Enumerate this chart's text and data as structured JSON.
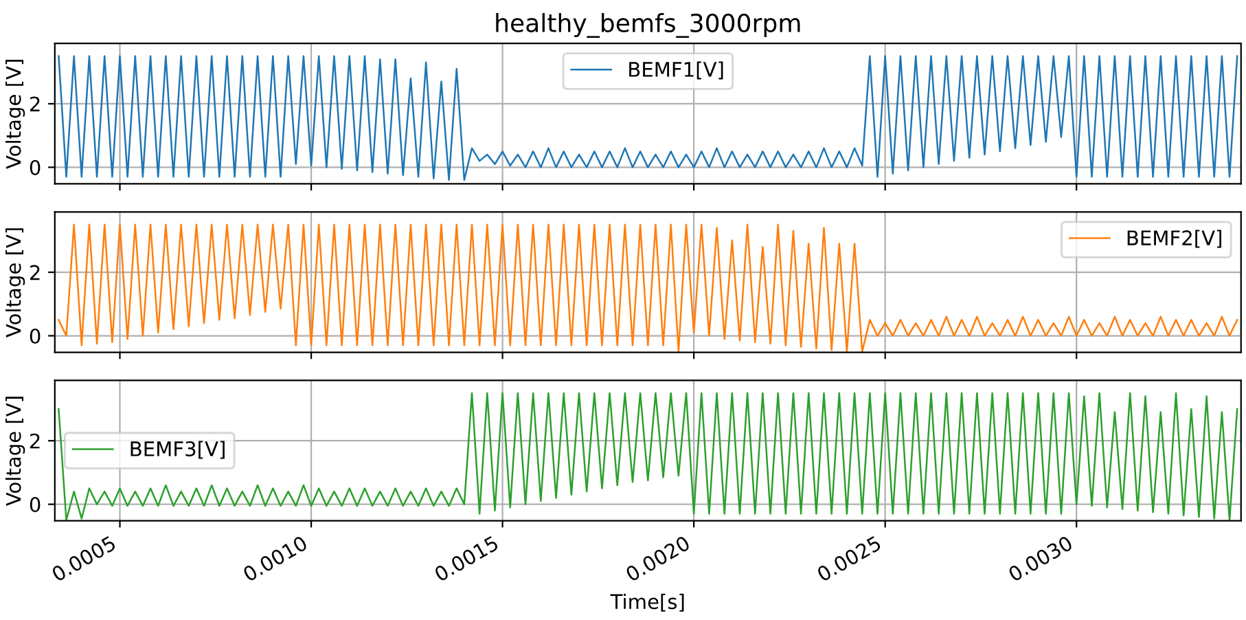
{
  "chart_data": [
    {
      "type": "line",
      "title": "healthy_bemfs_3000rpm",
      "ylabel": "Voltage [V]",
      "xlim": [
        0.00033,
        0.00343
      ],
      "ylim": [
        -0.52,
        3.9
      ],
      "yticks": [
        0,
        2
      ],
      "xticks": [
        {
          "value": 0.0005,
          "label": null
        },
        {
          "value": 0.001,
          "label": null
        },
        {
          "value": 0.0015,
          "label": null
        },
        {
          "value": 0.002,
          "label": null
        },
        {
          "value": 0.0025,
          "label": null
        },
        {
          "value": 0.003,
          "label": null
        }
      ],
      "tick_labels": "y",
      "grid": true,
      "legend": "top",
      "line_style": "solid",
      "marker": "none",
      "x": [
        0.00034,
        0.00036,
        0.00038,
        0.0004,
        0.00042,
        0.00044,
        0.00046,
        0.00048,
        0.0005,
        0.00052,
        0.00054,
        0.00056,
        0.00058,
        0.0006,
        0.00062,
        0.00064,
        0.00066,
        0.00068,
        0.0007,
        0.00072,
        0.00074,
        0.00076,
        0.00078,
        0.0008,
        0.00082,
        0.00084,
        0.00086,
        0.00088,
        0.0009,
        0.00092,
        0.00094,
        0.00096,
        0.00098,
        0.001,
        0.00102,
        0.00104,
        0.00106,
        0.00108,
        0.0011,
        0.00112,
        0.00114,
        0.00116,
        0.00118,
        0.0012,
        0.00122,
        0.00124,
        0.00126,
        0.00128,
        0.0013,
        0.00132,
        0.00134,
        0.00136,
        0.00138,
        0.0014,
        0.00142,
        0.00144,
        0.00146,
        0.00148,
        0.0015,
        0.00152,
        0.00154,
        0.00156,
        0.00158,
        0.0016,
        0.00162,
        0.00164,
        0.00166,
        0.00168,
        0.0017,
        0.00172,
        0.00174,
        0.00176,
        0.00178,
        0.0018,
        0.00182,
        0.00184,
        0.00186,
        0.00188,
        0.0019,
        0.00192,
        0.00194,
        0.00196,
        0.00198,
        0.002,
        0.00202,
        0.00204,
        0.00206,
        0.00208,
        0.0021,
        0.00212,
        0.00214,
        0.00216,
        0.00218,
        0.0022,
        0.00222,
        0.00224,
        0.00226,
        0.00228,
        0.0023,
        0.00232,
        0.00234,
        0.00236,
        0.00238,
        0.0024,
        0.00242,
        0.00244,
        0.00246,
        0.00248,
        0.0025,
        0.00252,
        0.00254,
        0.00256,
        0.00258,
        0.0026,
        0.00262,
        0.00264,
        0.00266,
        0.00268,
        0.0027,
        0.00272,
        0.00274,
        0.00276,
        0.00278,
        0.0028,
        0.00282,
        0.00284,
        0.00286,
        0.00288,
        0.0029,
        0.00292,
        0.00294,
        0.00296,
        0.00298,
        0.003,
        0.00302,
        0.00304,
        0.00306,
        0.00308,
        0.0031,
        0.00312,
        0.00314,
        0.00316,
        0.00318,
        0.0032,
        0.00322,
        0.00324,
        0.00326,
        0.00328,
        0.0033,
        0.00332,
        0.00334,
        0.00336,
        0.00338,
        0.0034,
        0.00342
      ],
      "series": [
        {
          "name": "BEMF1[V]",
          "color": "#1f77b4",
          "values": [
            3.5,
            -0.3,
            3.5,
            -0.3,
            3.5,
            -0.3,
            3.5,
            -0.3,
            3.5,
            -0.3,
            3.5,
            -0.3,
            3.5,
            -0.3,
            3.5,
            -0.3,
            3.5,
            -0.3,
            3.5,
            -0.3,
            3.5,
            -0.3,
            3.5,
            -0.3,
            3.5,
            -0.3,
            3.5,
            -0.3,
            3.5,
            -0.3,
            3.5,
            0.1,
            3.5,
            0.05,
            3.5,
            0.0,
            3.5,
            -0.05,
            3.5,
            -0.1,
            3.5,
            -0.15,
            3.4,
            -0.2,
            3.4,
            -0.25,
            2.8,
            -0.3,
            3.3,
            -0.35,
            2.7,
            -0.4,
            3.1,
            -0.4,
            0.6,
            0.2,
            0.4,
            0.1,
            0.5,
            0.05,
            0.4,
            0.0,
            0.5,
            0.0,
            0.6,
            0.0,
            0.5,
            0.0,
            0.4,
            0.0,
            0.5,
            0.0,
            0.5,
            0.0,
            0.6,
            0.0,
            0.5,
            0.0,
            0.4,
            0.0,
            0.5,
            0.0,
            0.4,
            0.0,
            0.5,
            0.0,
            0.6,
            0.0,
            0.5,
            0.0,
            0.4,
            0.0,
            0.5,
            0.0,
            0.5,
            0.0,
            0.4,
            0.0,
            0.5,
            0.0,
            0.6,
            0.0,
            0.5,
            0.0,
            0.6,
            0.05,
            3.5,
            -0.3,
            3.5,
            -0.2,
            3.5,
            -0.1,
            3.5,
            0.0,
            3.5,
            0.1,
            3.5,
            0.2,
            3.5,
            0.3,
            3.5,
            0.4,
            3.5,
            0.5,
            3.5,
            0.6,
            3.5,
            0.7,
            3.5,
            0.8,
            3.5,
            0.95,
            3.5,
            -0.3,
            3.5,
            -0.3,
            3.5,
            -0.3,
            3.5,
            -0.3,
            3.5,
            -0.3,
            3.5,
            -0.3,
            3.5,
            -0.3,
            3.5,
            -0.3,
            3.5,
            -0.3,
            3.5,
            -0.3,
            3.5,
            -0.3,
            3.5
          ]
        }
      ]
    },
    {
      "type": "line",
      "ylabel": "Voltage [V]",
      "xlim": [
        0.00033,
        0.00343
      ],
      "ylim": [
        -0.52,
        3.9
      ],
      "yticks": [
        0,
        2
      ],
      "xticks": [
        {
          "value": 0.0005,
          "label": null
        },
        {
          "value": 0.001,
          "label": null
        },
        {
          "value": 0.0015,
          "label": null
        },
        {
          "value": 0.002,
          "label": null
        },
        {
          "value": 0.0025,
          "label": null
        },
        {
          "value": 0.003,
          "label": null
        }
      ],
      "tick_labels": "y",
      "grid": true,
      "legend": "top right",
      "line_style": "solid",
      "marker": "none",
      "x": [
        0.00034,
        0.00036,
        0.00038,
        0.0004,
        0.00042,
        0.00044,
        0.00046,
        0.00048,
        0.0005,
        0.00052,
        0.00054,
        0.00056,
        0.00058,
        0.0006,
        0.00062,
        0.00064,
        0.00066,
        0.00068,
        0.0007,
        0.00072,
        0.00074,
        0.00076,
        0.00078,
        0.0008,
        0.00082,
        0.00084,
        0.00086,
        0.00088,
        0.0009,
        0.00092,
        0.00094,
        0.00096,
        0.00098,
        0.001,
        0.00102,
        0.00104,
        0.00106,
        0.00108,
        0.0011,
        0.00112,
        0.00114,
        0.00116,
        0.00118,
        0.0012,
        0.00122,
        0.00124,
        0.00126,
        0.00128,
        0.0013,
        0.00132,
        0.00134,
        0.00136,
        0.00138,
        0.0014,
        0.00142,
        0.00144,
        0.00146,
        0.00148,
        0.0015,
        0.00152,
        0.00154,
        0.00156,
        0.00158,
        0.0016,
        0.00162,
        0.00164,
        0.00166,
        0.00168,
        0.0017,
        0.00172,
        0.00174,
        0.00176,
        0.00178,
        0.0018,
        0.00182,
        0.00184,
        0.00186,
        0.00188,
        0.0019,
        0.00192,
        0.00194,
        0.00196,
        0.00198,
        0.002,
        0.00202,
        0.00204,
        0.00206,
        0.00208,
        0.0021,
        0.00212,
        0.00214,
        0.00216,
        0.00218,
        0.0022,
        0.00222,
        0.00224,
        0.00226,
        0.00228,
        0.0023,
        0.00232,
        0.00234,
        0.00236,
        0.00238,
        0.0024,
        0.00242,
        0.00244,
        0.00246,
        0.00248,
        0.0025,
        0.00252,
        0.00254,
        0.00256,
        0.00258,
        0.0026,
        0.00262,
        0.00264,
        0.00266,
        0.00268,
        0.0027,
        0.00272,
        0.00274,
        0.00276,
        0.00278,
        0.0028,
        0.00282,
        0.00284,
        0.00286,
        0.00288,
        0.0029,
        0.00292,
        0.00294,
        0.00296,
        0.00298,
        0.003,
        0.00302,
        0.00304,
        0.00306,
        0.00308,
        0.0031,
        0.00312,
        0.00314,
        0.00316,
        0.00318,
        0.0032,
        0.00322,
        0.00324,
        0.00326,
        0.00328,
        0.0033,
        0.00332,
        0.00334,
        0.00336,
        0.00338,
        0.0034,
        0.00342
      ],
      "series": [
        {
          "name": "BEMF2[V]",
          "color": "#ff7f0e",
          "values": [
            0.5,
            0.0,
            3.5,
            -0.3,
            3.5,
            -0.25,
            3.5,
            -0.2,
            3.5,
            -0.1,
            3.5,
            0.0,
            3.5,
            0.1,
            3.5,
            0.2,
            3.5,
            0.3,
            3.5,
            0.4,
            3.5,
            0.5,
            3.5,
            0.55,
            3.5,
            0.65,
            3.5,
            0.75,
            3.5,
            0.85,
            3.5,
            -0.3,
            3.5,
            -0.3,
            3.5,
            -0.3,
            3.5,
            -0.3,
            3.5,
            -0.3,
            3.5,
            -0.3,
            3.5,
            -0.3,
            3.5,
            -0.3,
            3.5,
            -0.3,
            3.5,
            -0.3,
            3.5,
            -0.3,
            3.5,
            -0.3,
            3.5,
            -0.3,
            3.5,
            -0.3,
            3.5,
            -0.3,
            3.5,
            -0.3,
            3.5,
            -0.3,
            3.5,
            -0.3,
            3.5,
            -0.3,
            3.5,
            -0.3,
            3.5,
            -0.3,
            3.5,
            -0.3,
            3.5,
            -0.3,
            3.5,
            -0.3,
            3.5,
            -0.3,
            3.5,
            -0.5,
            3.5,
            0.1,
            3.5,
            0.0,
            3.4,
            -0.1,
            3.0,
            -0.15,
            3.5,
            -0.2,
            2.8,
            -0.25,
            3.5,
            -0.3,
            3.3,
            -0.35,
            2.9,
            -0.4,
            3.4,
            -0.45,
            2.9,
            -0.5,
            2.9,
            -0.5,
            0.5,
            0.0,
            0.4,
            0.0,
            0.5,
            0.0,
            0.4,
            0.0,
            0.5,
            0.0,
            0.6,
            0.0,
            0.5,
            0.0,
            0.6,
            0.0,
            0.4,
            0.0,
            0.5,
            0.0,
            0.6,
            0.0,
            0.5,
            0.0,
            0.4,
            0.0,
            0.6,
            0.0,
            0.5,
            0.0,
            0.4,
            0.0,
            0.6,
            0.0,
            0.5,
            0.0,
            0.4,
            0.0,
            0.6,
            0.0,
            0.5,
            0.0,
            0.5,
            0.0,
            0.4,
            0.0,
            0.6,
            0.0,
            0.5
          ]
        }
      ]
    },
    {
      "type": "line",
      "ylabel": "Voltage [V]",
      "xlabel": "Time[s]",
      "xlim": [
        0.00033,
        0.00343
      ],
      "ylim": [
        -0.52,
        3.9
      ],
      "yticks": [
        0,
        2
      ],
      "xticks": [
        {
          "value": 0.0005,
          "label": "0.0005"
        },
        {
          "value": 0.001,
          "label": "0.0010"
        },
        {
          "value": 0.0015,
          "label": "0.0015"
        },
        {
          "value": 0.002,
          "label": "0.0020"
        },
        {
          "value": 0.0025,
          "label": "0.0025"
        },
        {
          "value": 0.003,
          "label": "0.0030"
        }
      ],
      "grid": true,
      "legend": "left",
      "line_style": "solid",
      "marker": "none",
      "x": [
        0.00034,
        0.00036,
        0.00038,
        0.0004,
        0.00042,
        0.00044,
        0.00046,
        0.00048,
        0.0005,
        0.00052,
        0.00054,
        0.00056,
        0.00058,
        0.0006,
        0.00062,
        0.00064,
        0.00066,
        0.00068,
        0.0007,
        0.00072,
        0.00074,
        0.00076,
        0.00078,
        0.0008,
        0.00082,
        0.00084,
        0.00086,
        0.00088,
        0.0009,
        0.00092,
        0.00094,
        0.00096,
        0.00098,
        0.001,
        0.00102,
        0.00104,
        0.00106,
        0.00108,
        0.0011,
        0.00112,
        0.00114,
        0.00116,
        0.00118,
        0.0012,
        0.00122,
        0.00124,
        0.00126,
        0.00128,
        0.0013,
        0.00132,
        0.00134,
        0.00136,
        0.00138,
        0.0014,
        0.00142,
        0.00144,
        0.00146,
        0.00148,
        0.0015,
        0.00152,
        0.00154,
        0.00156,
        0.00158,
        0.0016,
        0.00162,
        0.00164,
        0.00166,
        0.00168,
        0.0017,
        0.00172,
        0.00174,
        0.00176,
        0.00178,
        0.0018,
        0.00182,
        0.00184,
        0.00186,
        0.00188,
        0.0019,
        0.00192,
        0.00194,
        0.00196,
        0.00198,
        0.002,
        0.00202,
        0.00204,
        0.00206,
        0.00208,
        0.0021,
        0.00212,
        0.00214,
        0.00216,
        0.00218,
        0.0022,
        0.00222,
        0.00224,
        0.00226,
        0.00228,
        0.0023,
        0.00232,
        0.00234,
        0.00236,
        0.00238,
        0.0024,
        0.00242,
        0.00244,
        0.00246,
        0.00248,
        0.0025,
        0.00252,
        0.00254,
        0.00256,
        0.00258,
        0.0026,
        0.00262,
        0.00264,
        0.00266,
        0.00268,
        0.0027,
        0.00272,
        0.00274,
        0.00276,
        0.00278,
        0.0028,
        0.00282,
        0.00284,
        0.00286,
        0.00288,
        0.0029,
        0.00292,
        0.00294,
        0.00296,
        0.00298,
        0.003,
        0.00302,
        0.00304,
        0.00306,
        0.00308,
        0.0031,
        0.00312,
        0.00314,
        0.00316,
        0.00318,
        0.0032,
        0.00322,
        0.00324,
        0.00326,
        0.00328,
        0.0033,
        0.00332,
        0.00334,
        0.00336,
        0.00338,
        0.0034,
        0.00342
      ],
      "series": [
        {
          "name": "BEMF3[V]",
          "color": "#2ca02c",
          "values": [
            3.0,
            -0.5,
            0.4,
            -0.45,
            0.5,
            0.0,
            0.4,
            -0.05,
            0.5,
            -0.05,
            0.4,
            -0.05,
            0.5,
            -0.05,
            0.6,
            -0.05,
            0.4,
            -0.05,
            0.5,
            -0.05,
            0.6,
            -0.05,
            0.5,
            -0.05,
            0.4,
            -0.05,
            0.6,
            -0.05,
            0.5,
            -0.05,
            0.4,
            -0.05,
            0.6,
            -0.05,
            0.5,
            -0.05,
            0.4,
            -0.05,
            0.5,
            -0.05,
            0.5,
            -0.05,
            0.4,
            -0.05,
            0.5,
            -0.05,
            0.4,
            -0.05,
            0.5,
            -0.05,
            0.4,
            -0.05,
            0.5,
            0.0,
            3.5,
            -0.3,
            3.5,
            -0.2,
            3.5,
            -0.1,
            3.5,
            0.0,
            3.5,
            0.1,
            3.5,
            0.2,
            3.5,
            0.3,
            3.5,
            0.4,
            3.5,
            0.5,
            3.5,
            0.6,
            3.5,
            0.7,
            3.5,
            0.75,
            3.5,
            0.85,
            3.5,
            0.9,
            3.5,
            -0.3,
            3.5,
            -0.3,
            3.5,
            -0.3,
            3.5,
            -0.3,
            3.5,
            -0.3,
            3.5,
            -0.3,
            3.5,
            -0.3,
            3.5,
            -0.3,
            3.5,
            -0.3,
            3.5,
            -0.3,
            3.5,
            -0.3,
            3.5,
            -0.3,
            3.5,
            -0.3,
            3.5,
            -0.3,
            3.5,
            -0.3,
            3.5,
            -0.3,
            3.5,
            -0.3,
            3.5,
            -0.3,
            3.5,
            -0.3,
            3.5,
            -0.3,
            3.5,
            -0.3,
            3.5,
            -0.3,
            3.5,
            -0.3,
            3.5,
            -0.3,
            3.5,
            -0.3,
            3.5,
            0.0,
            3.4,
            -0.05,
            3.5,
            -0.1,
            2.9,
            -0.15,
            3.5,
            -0.2,
            3.4,
            -0.25,
            2.9,
            -0.3,
            3.5,
            -0.35,
            3.0,
            -0.4,
            3.4,
            -0.45,
            2.9,
            -0.5,
            3.0
          ]
        }
      ]
    }
  ]
}
